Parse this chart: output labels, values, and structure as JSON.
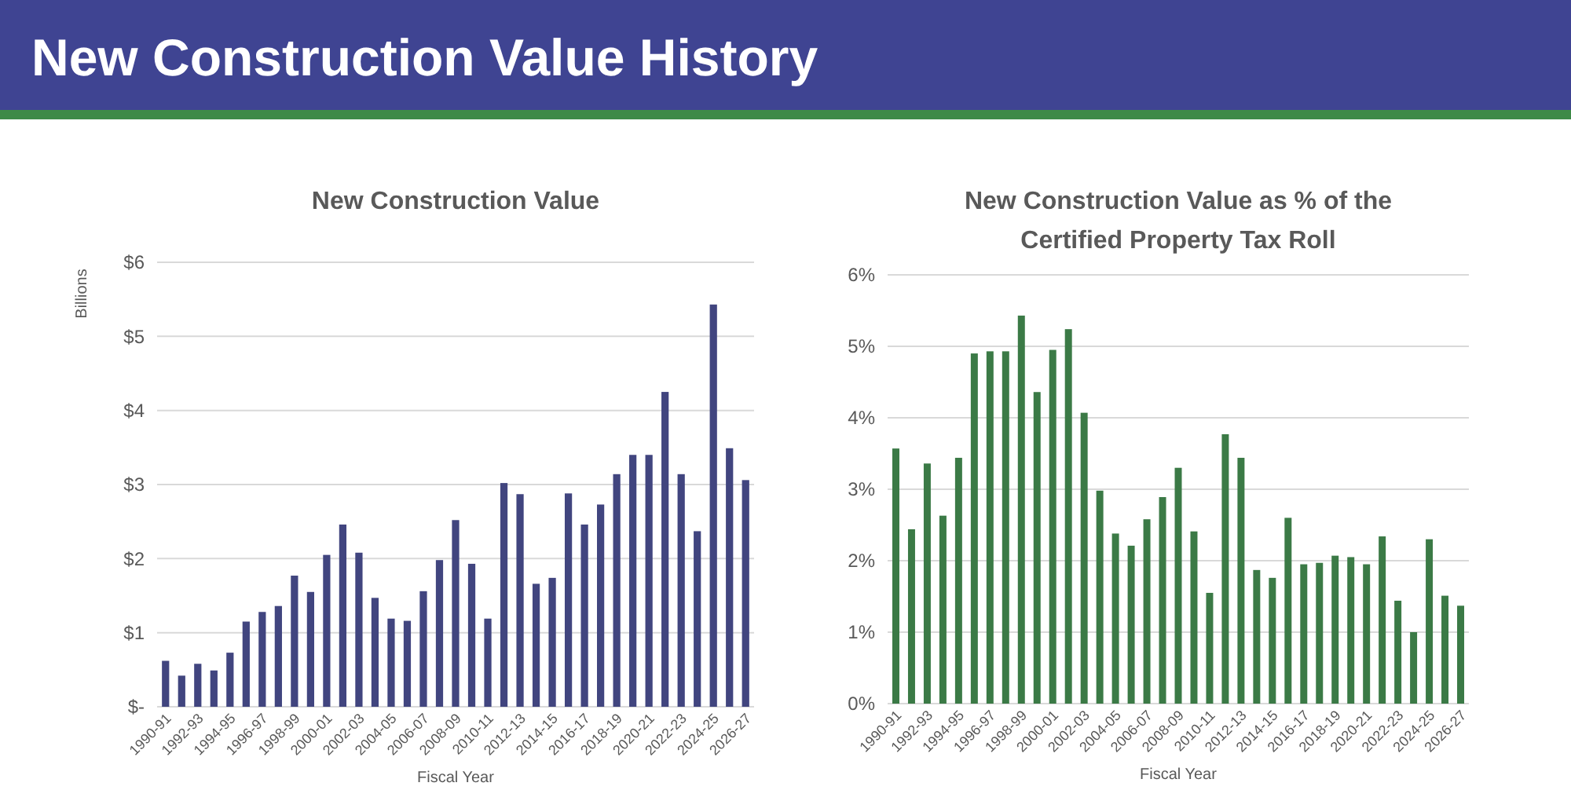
{
  "chart_data": [
    {
      "type": "other",
      "title": "New Construction Value History"
    },
    {
      "type": "bar",
      "title": "New Construction Value",
      "xlabel": "Fiscal Year",
      "ylabel": "Billions",
      "categories": [
        "1990-91",
        null,
        "1992-93",
        null,
        "1994-95",
        null,
        "1996-97",
        null,
        "1998-99",
        null,
        "2000-01",
        null,
        "2002-03",
        null,
        "2004-05",
        null,
        "2006-07",
        null,
        "2008-09",
        null,
        "2010-11",
        null,
        "2012-13",
        null,
        "2014-15",
        null,
        "2016-17",
        null,
        "2018-19",
        null,
        "2020-21",
        null,
        "2022-23",
        null,
        "2024-25",
        null,
        "2026-27"
      ],
      "values": [
        0.62,
        0.42,
        0.58,
        0.49,
        0.73,
        1.15,
        1.28,
        1.36,
        1.77,
        1.55,
        2.05,
        2.46,
        2.08,
        1.47,
        1.19,
        1.16,
        1.56,
        1.98,
        2.52,
        1.93,
        1.19,
        3.02,
        2.87,
        1.66,
        1.74,
        2.88,
        2.46,
        2.73,
        3.14,
        3.4,
        3.4,
        4.25,
        3.14,
        2.37,
        5.43,
        3.49,
        3.06
      ],
      "color": "#41457f",
      "ylim": [
        0,
        6
      ],
      "yticks": [
        {
          "value": 0,
          "label": "$-"
        },
        {
          "value": 1,
          "label": "$1"
        },
        {
          "value": 2,
          "label": "$2"
        },
        {
          "value": 3,
          "label": "$3"
        },
        {
          "value": 4,
          "label": "$4"
        },
        {
          "value": 5,
          "label": "$5"
        },
        {
          "value": 6,
          "label": "$6"
        }
      ],
      "grid": "y"
    },
    {
      "type": "bar",
      "title": "New Construction Value as % of the Certified Property Tax Roll",
      "xlabel": "Fiscal Year",
      "categories": [
        "1990-91",
        null,
        "1992-93",
        null,
        "1994-95",
        null,
        "1996-97",
        null,
        "1998-99",
        null,
        "2000-01",
        null,
        "2002-03",
        null,
        "2004-05",
        null,
        "2006-07",
        null,
        "2008-09",
        null,
        "2010-11",
        null,
        "2012-13",
        null,
        "2014-15",
        null,
        "2016-17",
        null,
        "2018-19",
        null,
        "2020-21",
        null,
        "2022-23",
        null,
        "2024-25",
        null,
        "2026-27"
      ],
      "values": [
        3.57,
        2.44,
        3.36,
        2.63,
        3.44,
        4.9,
        4.93,
        4.93,
        5.43,
        4.36,
        4.95,
        5.24,
        4.07,
        2.98,
        2.38,
        2.21,
        2.58,
        2.89,
        3.3,
        2.41,
        1.55,
        3.77,
        3.44,
        1.87,
        1.76,
        2.6,
        1.95,
        1.97,
        2.07,
        2.05,
        1.95,
        2.34,
        1.44,
        1.0,
        2.3,
        1.51,
        1.37
      ],
      "color": "#3b7a46",
      "ylim": [
        0,
        6
      ],
      "yticks": [
        {
          "value": 0,
          "label": "0%"
        },
        {
          "value": 1,
          "label": "1%"
        },
        {
          "value": 2,
          "label": "2%"
        },
        {
          "value": 3,
          "label": "3%"
        },
        {
          "value": 4,
          "label": "4%"
        },
        {
          "value": 5,
          "label": "5%"
        },
        {
          "value": 6,
          "label": "6%"
        }
      ],
      "grid": "y"
    }
  ]
}
